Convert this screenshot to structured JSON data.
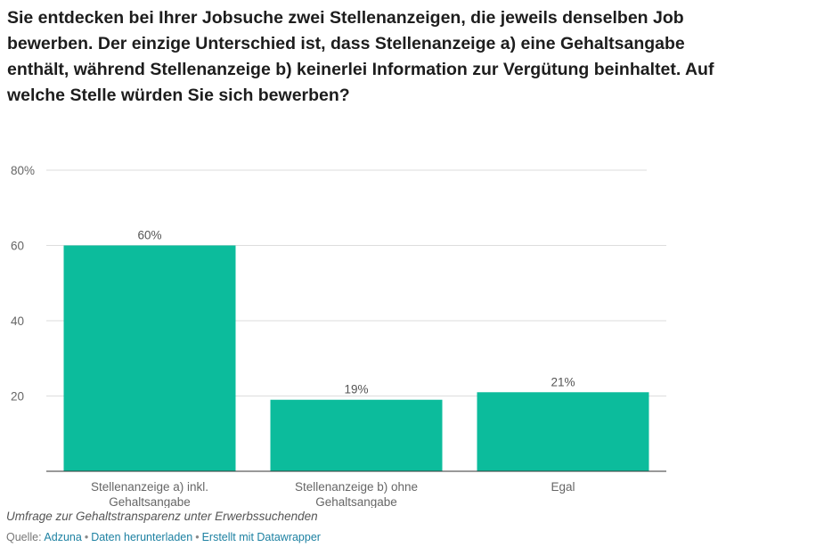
{
  "title": "Sie entdecken bei Ihrer Jobsuche zwei Stellenanzeigen, die jeweils denselben Job bewerben. Der einzige Unterschied ist, dass Stellenanzeige a) eine Gehaltsangabe enthält, während Stellenanzeige b) keinerlei Information zur Vergütung beinhaltet. Auf welche Stelle würden Sie sich bewerben?",
  "notes": "Umfrage zur Gehaltstransparenz unter Erwerbssuchenden",
  "source": {
    "prefix": "Quelle:",
    "name": "Adzuna",
    "download": "Daten herunterladen",
    "made_with": "Erstellt mit Datawrapper"
  },
  "colors": {
    "bar": "#0cbc9c",
    "grid": "#dddddd",
    "axis": "#333333"
  },
  "chart_data": {
    "type": "bar",
    "title": "Sie entdecken bei Ihrer Jobsuche zwei Stellenanzeigen, die jeweils denselben Job bewerben. Der einzige Unterschied ist, dass Stellenanzeige a) eine Gehaltsangabe enthält, während Stellenanzeige b) keinerlei Information zur Vergütung beinhaltet. Auf welche Stelle würden Sie sich bewerben?",
    "categories": [
      "Stellenanzeige a) inkl. Gehaltsangabe",
      "Stellenanzeige b) ohne Gehaltsangabe",
      "Egal"
    ],
    "values": [
      60,
      19,
      21
    ],
    "value_labels": [
      "60%",
      "19%",
      "21%"
    ],
    "yticks": [
      20,
      40,
      60,
      80
    ],
    "ytick_labels": [
      "20",
      "40",
      "60",
      "80%"
    ],
    "ylim": [
      0,
      80
    ],
    "xlabel": "",
    "ylabel": "",
    "grid": true
  }
}
